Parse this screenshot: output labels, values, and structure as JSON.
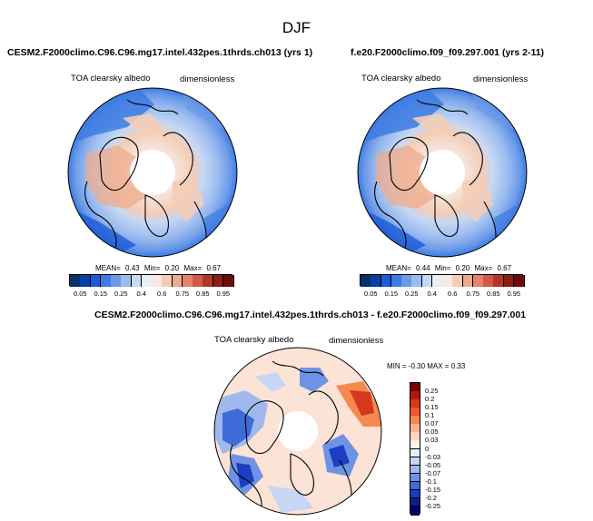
{
  "season": "DJF",
  "left_panel": {
    "title": "CESM2.F2000climo.C96.C96.mg17.intel.432pes.1thrds.ch013 (yrs 1)",
    "variable": "TOA clearsky albedo",
    "units": "dimensionless",
    "stats": {
      "mean_label": "MEAN=",
      "mean": "0.43",
      "min_label": "Min=",
      "min": "0.20",
      "max_label": "Max=",
      "max": "0.67"
    }
  },
  "right_panel": {
    "title": "f.e20.F2000climo.f09_f09.297.001 (yrs 2-11)",
    "variable": "TOA clearsky albedo",
    "units": "dimensionless",
    "stats": {
      "mean_label": "MEAN=",
      "mean": "0.44",
      "min_label": "Min=",
      "min": "0.20",
      "max_label": "Max=",
      "max": "0.67"
    }
  },
  "diff_panel": {
    "title": "CESM2.F2000climo.C96.C96.mg17.intel.432pes.1thrds.ch013 - f.e20.F2000climo.f09_f09.297.001",
    "variable": "TOA clearsky albedo",
    "units": "dimensionless",
    "minmax_text": "MIN =  -0.30 MAX =  0.33"
  },
  "colorbar_main": {
    "ticks": [
      "0.05",
      "0.15",
      "0.25",
      "0.4",
      "0.6",
      "0.75",
      "0.85",
      "0.95"
    ],
    "colors": [
      "#08306b",
      "#0b3fa0",
      "#1c5bd6",
      "#3d7be3",
      "#6b9ae8",
      "#9bbcef",
      "#c6d8f4",
      "#e6eef8",
      "#f7e9e1",
      "#f3cdb7",
      "#eeab8d",
      "#e6836b",
      "#d15a45",
      "#b23627",
      "#8c1e15",
      "#6b0c0a"
    ]
  },
  "colorbar_diff": {
    "ticks": [
      "0.25",
      "0.2",
      "0.15",
      "0.1",
      "0.07",
      "0.05",
      "0.03",
      "0",
      "-0.03",
      "-0.05",
      "-0.07",
      "-0.1",
      "-0.15",
      "-0.2",
      "-0.25"
    ],
    "colors": [
      "#7f0000",
      "#b01a10",
      "#d5371f",
      "#ea5a2f",
      "#f5894f",
      "#f8b48c",
      "#fbd7c2",
      "#fdf0e8",
      "#e6eefb",
      "#c6d6f4",
      "#9fb9ee",
      "#6e93e4",
      "#3f6bd8",
      "#1a3fc0",
      "#0a1f93",
      "#000066"
    ]
  }
}
